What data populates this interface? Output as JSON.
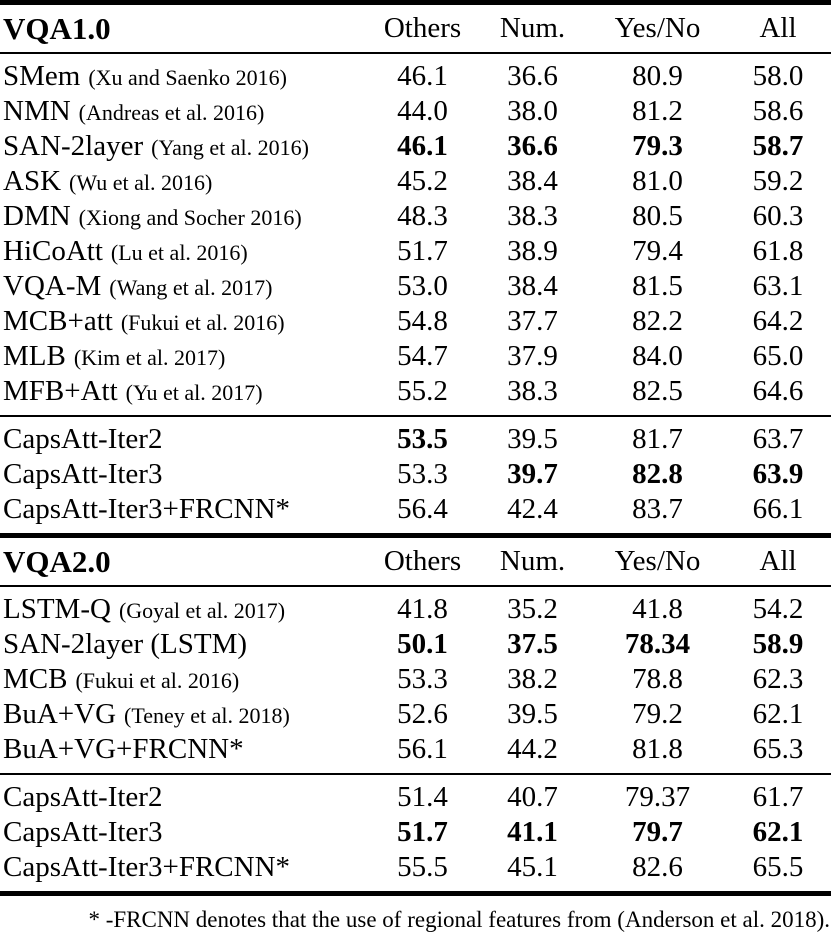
{
  "table": {
    "sections": [
      {
        "title": "VQA1.0",
        "columns": [
          "Others",
          "Num.",
          "Yes/No",
          "All"
        ],
        "groups": [
          {
            "rows": [
              {
                "method": "SMem",
                "cite": "(Xu and Saenko 2016)",
                "values": [
                  "46.1",
                  "36.6",
                  "80.9",
                  "58.0"
                ],
                "bold": []
              },
              {
                "method": "NMN",
                "cite": "(Andreas et al. 2016)",
                "values": [
                  "44.0",
                  "38.0",
                  "81.2",
                  "58.6"
                ],
                "bold": []
              },
              {
                "method": "SAN-2layer",
                "cite": "(Yang et al. 2016)",
                "values": [
                  "46.1",
                  "36.6",
                  "79.3",
                  "58.7"
                ],
                "bold": [
                  0,
                  1,
                  2,
                  3
                ]
              },
              {
                "method": "ASK",
                "cite": "(Wu et al. 2016)",
                "values": [
                  "45.2",
                  "38.4",
                  "81.0",
                  "59.2"
                ],
                "bold": []
              },
              {
                "method": "DMN",
                "cite": "(Xiong and Socher 2016)",
                "values": [
                  "48.3",
                  "38.3",
                  "80.5",
                  "60.3"
                ],
                "bold": []
              },
              {
                "method": "HiCoAtt",
                "cite": "(Lu et al. 2016)",
                "values": [
                  "51.7",
                  "38.9",
                  "79.4",
                  "61.8"
                ],
                "bold": []
              },
              {
                "method": "VQA-M",
                "cite": "(Wang et al. 2017)",
                "values": [
                  "53.0",
                  "38.4",
                  "81.5",
                  "63.1"
                ],
                "bold": []
              },
              {
                "method": "MCB+att",
                "cite": "(Fukui et al. 2016)",
                "values": [
                  "54.8",
                  "37.7",
                  "82.2",
                  "64.2"
                ],
                "bold": []
              },
              {
                "method": "MLB",
                "cite": "(Kim et al. 2017)",
                "values": [
                  "54.7",
                  "37.9",
                  "84.0",
                  "65.0"
                ],
                "bold": []
              },
              {
                "method": "MFB+Att",
                "cite": "(Yu et al. 2017)",
                "values": [
                  "55.2",
                  "38.3",
                  "82.5",
                  "64.6"
                ],
                "bold": []
              }
            ]
          },
          {
            "rows": [
              {
                "method": "CapsAtt-Iter2",
                "cite": "",
                "values": [
                  "53.5",
                  "39.5",
                  "81.7",
                  "63.7"
                ],
                "bold": [
                  0
                ]
              },
              {
                "method": "CapsAtt-Iter3",
                "cite": "",
                "values": [
                  "53.3",
                  "39.7",
                  "82.8",
                  "63.9"
                ],
                "bold": [
                  1,
                  2,
                  3
                ]
              },
              {
                "method": "CapsAtt-Iter3+FRCNN*",
                "cite": "",
                "values": [
                  "56.4",
                  "42.4",
                  "83.7",
                  "66.1"
                ],
                "bold": []
              }
            ]
          }
        ]
      },
      {
        "title": "VQA2.0",
        "columns": [
          "Others",
          "Num.",
          "Yes/No",
          "All"
        ],
        "groups": [
          {
            "rows": [
              {
                "method": "LSTM-Q",
                "cite": "(Goyal et al. 2017)",
                "values": [
                  "41.8",
                  "35.2",
                  "41.8",
                  "54.2"
                ],
                "bold": []
              },
              {
                "method": "SAN-2layer (LSTM)",
                "cite": "",
                "values": [
                  "50.1",
                  "37.5",
                  "78.34",
                  "58.9"
                ],
                "bold": [
                  0,
                  1,
                  2,
                  3
                ]
              },
              {
                "method": "MCB",
                "cite": "(Fukui et al. 2016)",
                "values": [
                  "53.3",
                  "38.2",
                  "78.8",
                  "62.3"
                ],
                "bold": []
              },
              {
                "method": "BuA+VG",
                "cite": "(Teney et al. 2018)",
                "values": [
                  "52.6",
                  "39.5",
                  "79.2",
                  "62.1"
                ],
                "bold": []
              },
              {
                "method": "BuA+VG+FRCNN*",
                "cite": "",
                "values": [
                  "56.1",
                  "44.2",
                  "81.8",
                  "65.3"
                ],
                "bold": []
              }
            ]
          },
          {
            "rows": [
              {
                "method": "CapsAtt-Iter2",
                "cite": "",
                "values": [
                  "51.4",
                  "40.7",
                  "79.37",
                  "61.7"
                ],
                "bold": []
              },
              {
                "method": "CapsAtt-Iter3",
                "cite": "",
                "values": [
                  "51.7",
                  "41.1",
                  "79.7",
                  "62.1"
                ],
                "bold": [
                  0,
                  1,
                  2,
                  3
                ]
              },
              {
                "method": "CapsAtt-Iter3+FRCNN*",
                "cite": "",
                "values": [
                  "55.5",
                  "45.1",
                  "82.6",
                  "65.5"
                ],
                "bold": []
              }
            ]
          }
        ]
      }
    ],
    "footnote": "* -FRCNN denotes that the use of regional features from (Anderson et al. 2018).",
    "colors": {
      "text": "#000000",
      "background": "#ffffff",
      "rule": "#000000"
    }
  }
}
